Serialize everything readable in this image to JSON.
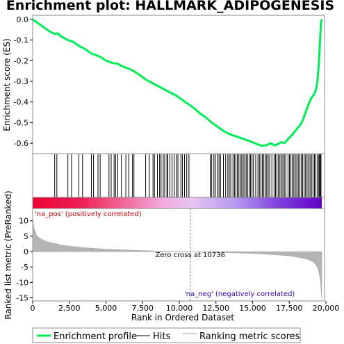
{
  "chart_data": {
    "type": "line",
    "title": "Enrichment plot: HALLMARK_ADIPOGENESIS",
    "xlabel": "Rank in Ordered Dataset",
    "x_range": [
      0,
      19700
    ],
    "x_ticks": [
      0,
      2500,
      5000,
      7500,
      10000,
      12500,
      15000,
      17500,
      20000
    ],
    "x_tick_labels": [
      "0",
      "2,500",
      "5,000",
      "7,500",
      "10,000",
      "12,500",
      "15,000",
      "17,500",
      "20,000"
    ],
    "top_panel": {
      "ylabel": "Enrichment score (ES)",
      "ylim": [
        -0.65,
        0.02
      ],
      "y_ticks": [
        0.0,
        -0.1,
        -0.2,
        -0.3,
        -0.4,
        -0.5,
        -0.6
      ],
      "y_tick_labels": [
        "0.0",
        "-0.1",
        "-0.2",
        "-0.3",
        "-0.4",
        "-0.5",
        "-0.6"
      ],
      "series": [
        {
          "name": "Enrichment profile",
          "color": "#00ee55",
          "x": [
            0,
            600,
            1200,
            1500,
            1700,
            2000,
            2400,
            2800,
            3200,
            3600,
            4000,
            4400,
            4700,
            5000,
            5400,
            5800,
            6200,
            6600,
            7000,
            7400,
            7800,
            8200,
            8600,
            9000,
            9400,
            9800,
            10200,
            10600,
            11000,
            11400,
            11800,
            12200,
            12600,
            13000,
            13400,
            13800,
            14200,
            14600,
            15000,
            15300,
            15600,
            15900,
            16200,
            16500,
            16700,
            16900,
            17200,
            17400,
            17600,
            17800,
            18000,
            18200,
            18400,
            18600,
            18800,
            19000,
            19200,
            19300,
            19400,
            19500,
            19550,
            19600,
            19650,
            19700
          ],
          "y": [
            0.0,
            -0.03,
            -0.06,
            -0.07,
            -0.068,
            -0.085,
            -0.1,
            -0.11,
            -0.13,
            -0.145,
            -0.165,
            -0.175,
            -0.185,
            -0.2,
            -0.21,
            -0.215,
            -0.23,
            -0.24,
            -0.255,
            -0.275,
            -0.295,
            -0.31,
            -0.325,
            -0.34,
            -0.355,
            -0.37,
            -0.39,
            -0.41,
            -0.43,
            -0.455,
            -0.475,
            -0.5,
            -0.52,
            -0.54,
            -0.555,
            -0.565,
            -0.575,
            -0.585,
            -0.595,
            -0.605,
            -0.612,
            -0.61,
            -0.6,
            -0.61,
            -0.605,
            -0.595,
            -0.598,
            -0.58,
            -0.565,
            -0.55,
            -0.53,
            -0.515,
            -0.49,
            -0.45,
            -0.41,
            -0.38,
            -0.36,
            -0.34,
            -0.3,
            -0.22,
            -0.15,
            -0.08,
            -0.02,
            0.0
          ]
        }
      ]
    },
    "hits_panel": {
      "name": "Hits",
      "hits": [
        1500,
        1650,
        2400,
        2650,
        3150,
        3400,
        4000,
        4150,
        4450,
        4600,
        5200,
        5350,
        5550,
        5650,
        5800,
        6050,
        6350,
        6550,
        6800,
        6900,
        7700,
        7950,
        8200,
        8300,
        8500,
        8650,
        8750,
        8900,
        9000,
        9150,
        9200,
        9350,
        9500,
        9650,
        9800,
        9900,
        10100,
        10200,
        10350,
        10500,
        10650,
        12100,
        12200,
        12350,
        12450,
        12600,
        12700,
        12800,
        13000,
        13150,
        13300,
        13400,
        13500,
        13650,
        13750,
        13850,
        13950,
        14050,
        14150,
        14250,
        14350,
        14450,
        14550,
        14650,
        14750,
        14850,
        14950,
        15050,
        15200,
        15350,
        15450,
        15550,
        15650,
        15750,
        15850,
        15950,
        16050,
        16150,
        16300,
        16450,
        16550,
        16650,
        16750,
        16850,
        16950,
        17050,
        17150,
        17250,
        17400,
        17500,
        17600,
        17700,
        17800,
        17900,
        18000,
        18100,
        18200,
        18300,
        18400,
        18500,
        18600,
        18700,
        18800,
        18900,
        19000,
        19100,
        19200,
        19300,
        19400,
        19500,
        19550,
        19600,
        19650
      ]
    },
    "bottom_panel": {
      "ylabel": "Ranked list metric (PreRanked)",
      "ylim": [
        -16,
        14
      ],
      "y_ticks": [
        10,
        5,
        0,
        -5,
        -10,
        -15
      ],
      "y_tick_labels": [
        "10",
        "5",
        "0",
        "-5",
        "-10",
        "-15"
      ],
      "series": [
        {
          "name": "Ranking metric scores",
          "color": "#aaaaaa",
          "x": [
            0,
            100,
            300,
            600,
            1000,
            1500,
            2000,
            3000,
            4000,
            5000,
            6000,
            7000,
            8000,
            9000,
            10000,
            10736,
            11500,
            12500,
            13500,
            14500,
            15500,
            16500,
            17500,
            18200,
            18800,
            19200,
            19450,
            19600,
            19700
          ],
          "y": [
            11,
            7.5,
            5,
            4,
            3.2,
            2.6,
            2.1,
            1.5,
            1.1,
            0.8,
            0.6,
            0.4,
            0.25,
            0.12,
            0.04,
            0.0,
            -0.1,
            -0.2,
            -0.35,
            -0.5,
            -0.7,
            -1.0,
            -1.4,
            -1.9,
            -2.6,
            -3.6,
            -5.5,
            -9,
            -15
          ]
        }
      ],
      "zero_cross_label": "Zero cross at 10736",
      "zero_cross_x": 10736,
      "pos_label": "'na_pos' (positively correlated)",
      "neg_label": "'na_neg' (negatively correlated)"
    },
    "legend": {
      "placement": "bottom",
      "entries": [
        "Enrichment profile",
        "Hits",
        "Ranking metric scores"
      ]
    },
    "colors": {
      "profile": "#00ee55",
      "pos_label": "#cc0000",
      "neg_label": "#3300bb",
      "zero_line": "#808080"
    },
    "grid": false
  }
}
